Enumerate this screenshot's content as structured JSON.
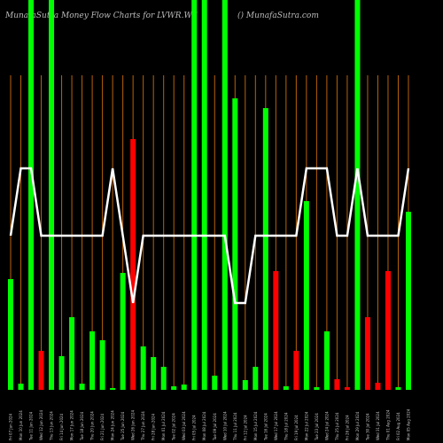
{
  "chart_data": {
    "type": "bar",
    "title": "MunafaSutra  Money Flow  Charts for LVWR.WS",
    "subtitle": "() MunafaSutra.com",
    "categories": [
      "Fri 07 Jun 2024",
      "Mon 10 Jun 2024",
      "Tue 11 Jun 2024",
      "Wed 12 Jun 2024",
      "Thu 13 Jun 2024",
      "Fri 14 Jun 2024",
      "Mon 17 Jun 2024",
      "Tue 18 Jun 2024",
      "Thu 20 Jun 2024",
      "Fri 21 Jun 2024",
      "Mon 24 Jun 2024",
      "Tue 25 Jun 2024",
      "Wed 26 Jun 2024",
      "Thu 27 Jun 2024",
      "Fri 28 Jun 2024",
      "Mon 01 Jul 2024",
      "Tue 02 Jul 2024",
      "Wed 03 Jul 2024",
      "Fri 05 Jul 2024",
      "Mon 08 Jul 2024",
      "Tue 09 Jul 2024",
      "Wed 10 Jul 2024",
      "Thu 11 Jul 2024",
      "Fri 12 Jul 2024",
      "Mon 15 Jul 2024",
      "Tue 16 Jul 2024",
      "Wed 17 Jul 2024",
      "Thu 18 Jul 2024",
      "Fri 19 Jul 2024",
      "Mon 22 Jul 2024",
      "Tue 23 Jul 2024",
      "Wed 24 Jul 2024",
      "Thu 25 Jul 2024",
      "Fri 26 Jul 2024",
      "Mon 29 Jul 2024",
      "Tue 30 Jul 2024",
      "Wed 31 Jul 2024",
      "Thu 01 Aug 2024",
      "Fri 02 Aug 2024",
      "Mon 05 Aug 2024"
    ],
    "series": [
      {
        "name": "Money Flow",
        "type": "bar",
        "values": [
          125,
          7,
          450,
          44,
          450,
          38,
          82,
          7,
          66,
          56,
          2,
          132,
          283,
          49,
          37,
          26,
          4,
          6,
          450,
          450,
          16,
          450,
          329,
          11,
          26,
          318,
          134,
          4,
          44,
          213,
          3,
          66,
          12,
          3,
          450,
          82,
          8,
          134,
          3,
          201
        ],
        "colors": [
          "#00ff00",
          "#00ff00",
          "#00ff00",
          "#ff0000",
          "#00ff00",
          "#00ff00",
          "#00ff00",
          "#00ff00",
          "#00ff00",
          "#00ff00",
          "#00ff00",
          "#00ff00",
          "#ff0000",
          "#00ff00",
          "#00ff00",
          "#00ff00",
          "#00ff00",
          "#00ff00",
          "#00ff00",
          "#00ff00",
          "#00ff00",
          "#00ff00",
          "#00ff00",
          "#00ff00",
          "#00ff00",
          "#00ff00",
          "#ff0000",
          "#00ff00",
          "#ff0000",
          "#00ff00",
          "#00ff00",
          "#00ff00",
          "#ff0000",
          "#ff0000",
          "#00ff00",
          "#ff0000",
          "#ff0000",
          "#ff0000",
          "#00ff00",
          "#00ff00"
        ]
      },
      {
        "name": "Trend",
        "type": "line",
        "color": "#ffffff",
        "values": [
          174,
          250,
          250,
          174,
          174,
          174,
          174,
          174,
          174,
          174,
          250,
          174,
          98,
          174,
          174,
          174,
          174,
          174,
          174,
          174,
          174,
          174,
          98,
          98,
          174,
          174,
          174,
          174,
          174,
          250,
          250,
          250,
          174,
          174,
          250,
          174,
          174,
          174,
          174,
          250
        ]
      }
    ],
    "ylim": [
      0,
      440
    ],
    "vline_color": "#b8620a"
  }
}
